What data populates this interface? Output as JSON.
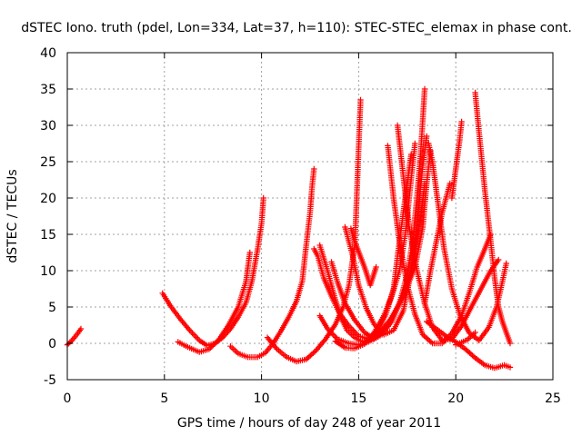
{
  "chart_data": {
    "type": "scatter",
    "title": "dSTEC Iono. truth (pdel, Lon=334, Lat=37, h=110): STEC-STEC_elemax in phase cont.",
    "xlabel": "GPS time / hours of day 248 of year 2011",
    "ylabel": "dSTEC  / TECUs",
    "xlim": [
      0,
      25
    ],
    "ylim": [
      -5,
      40
    ],
    "xticks": [
      "0",
      "5",
      "10",
      "15",
      "20",
      "25"
    ],
    "yticks": [
      "-5",
      "0",
      "5",
      "10",
      "15",
      "20",
      "25",
      "30",
      "35",
      "40"
    ],
    "grid": true,
    "marker": "plus",
    "series_color": "#ff0000",
    "series": [
      {
        "points": [
          [
            0.0,
            -0.2
          ],
          [
            0.2,
            0.3
          ],
          [
            0.4,
            0.9
          ],
          [
            0.6,
            1.6
          ],
          [
            0.7,
            2.0
          ]
        ]
      },
      {
        "points": [
          [
            4.9,
            6.9
          ],
          [
            5.3,
            5.2
          ],
          [
            5.8,
            3.4
          ],
          [
            6.3,
            1.8
          ],
          [
            6.8,
            0.4
          ],
          [
            7.2,
            -0.3
          ],
          [
            7.6,
            0.0
          ],
          [
            8.0,
            0.8
          ],
          [
            8.4,
            2.0
          ],
          [
            8.8,
            3.6
          ],
          [
            9.2,
            5.6
          ],
          [
            9.5,
            8.5
          ],
          [
            9.8,
            13.0
          ],
          [
            10.0,
            16.5
          ],
          [
            10.1,
            20.0
          ]
        ]
      },
      {
        "points": [
          [
            5.7,
            0.2
          ],
          [
            6.2,
            -0.5
          ],
          [
            6.8,
            -1.2
          ],
          [
            7.3,
            -0.8
          ],
          [
            7.8,
            0.5
          ],
          [
            8.3,
            2.5
          ],
          [
            8.8,
            5.0
          ],
          [
            9.2,
            8.5
          ],
          [
            9.4,
            12.5
          ]
        ]
      },
      {
        "points": [
          [
            8.4,
            -0.4
          ],
          [
            8.8,
            -1.4
          ],
          [
            9.3,
            -1.9
          ],
          [
            9.8,
            -1.9
          ],
          [
            10.2,
            -1.3
          ],
          [
            10.6,
            0.0
          ],
          [
            11.0,
            1.7
          ],
          [
            11.4,
            3.6
          ],
          [
            11.8,
            5.8
          ],
          [
            12.1,
            8.6
          ],
          [
            12.3,
            13.5
          ],
          [
            12.5,
            18.0
          ],
          [
            12.6,
            21.5
          ],
          [
            12.7,
            24.0
          ]
        ]
      },
      {
        "points": [
          [
            10.3,
            0.8
          ],
          [
            10.8,
            -0.8
          ],
          [
            11.3,
            -1.9
          ],
          [
            11.8,
            -2.5
          ],
          [
            12.3,
            -2.2
          ],
          [
            12.8,
            -1.0
          ],
          [
            13.3,
            0.6
          ],
          [
            13.8,
            2.6
          ],
          [
            14.2,
            5.0
          ],
          [
            14.5,
            8.0
          ],
          [
            14.8,
            13.5
          ],
          [
            14.9,
            20.0
          ],
          [
            15.0,
            27.0
          ],
          [
            15.1,
            33.5
          ]
        ]
      },
      {
        "points": [
          [
            12.7,
            13.0
          ],
          [
            12.9,
            12.0
          ],
          [
            13.2,
            9.0
          ],
          [
            13.6,
            6.5
          ],
          [
            14.0,
            4.2
          ],
          [
            14.5,
            2.4
          ],
          [
            15.0,
            1.0
          ],
          [
            15.5,
            0.6
          ],
          [
            16.0,
            1.8
          ],
          [
            16.4,
            4.0
          ],
          [
            16.8,
            7.5
          ],
          [
            17.0,
            12.0
          ],
          [
            17.3,
            18.0
          ],
          [
            17.5,
            22.0
          ],
          [
            17.7,
            26.0
          ]
        ]
      },
      {
        "points": [
          [
            13.0,
            13.5
          ],
          [
            13.4,
            10.0
          ],
          [
            13.8,
            6.0
          ],
          [
            14.1,
            3.5
          ],
          [
            14.4,
            1.8
          ],
          [
            14.8,
            0.8
          ],
          [
            15.2,
            0.2
          ],
          [
            15.6,
            0.5
          ],
          [
            16.1,
            1.5
          ],
          [
            16.7,
            3.5
          ],
          [
            17.3,
            6.5
          ],
          [
            17.9,
            10.5
          ],
          [
            18.3,
            16.0
          ],
          [
            18.5,
            22.0
          ],
          [
            18.7,
            26.5
          ]
        ]
      },
      {
        "points": [
          [
            13.6,
            11.2
          ],
          [
            13.9,
            8.5
          ],
          [
            14.3,
            5.5
          ],
          [
            14.8,
            3.2
          ],
          [
            15.3,
            1.5
          ],
          [
            15.8,
            0.6
          ],
          [
            16.2,
            1.2
          ],
          [
            16.7,
            3.0
          ],
          [
            17.1,
            5.5
          ],
          [
            17.5,
            9.5
          ],
          [
            17.8,
            14.5
          ],
          [
            18.0,
            20.0
          ],
          [
            18.2,
            26.5
          ],
          [
            18.4,
            35.0
          ]
        ]
      },
      {
        "points": [
          [
            14.3,
            16.0
          ],
          [
            14.7,
            12.0
          ],
          [
            15.0,
            8.0
          ],
          [
            15.4,
            4.8
          ],
          [
            15.8,
            2.6
          ],
          [
            16.3,
            1.2
          ],
          [
            16.8,
            1.8
          ],
          [
            17.3,
            4.5
          ],
          [
            17.6,
            8.5
          ],
          [
            17.9,
            13.5
          ],
          [
            18.1,
            19.0
          ],
          [
            18.3,
            24.5
          ],
          [
            18.5,
            28.5
          ]
        ]
      },
      {
        "points": [
          [
            14.6,
            15.8
          ],
          [
            14.8,
            14.0
          ],
          [
            15.3,
            10.5
          ],
          [
            15.6,
            8.0
          ],
          [
            15.9,
            10.5
          ]
        ]
      },
      {
        "points": [
          [
            13.0,
            3.8
          ],
          [
            13.4,
            2.0
          ],
          [
            13.9,
            0.6
          ],
          [
            14.5,
            0.0
          ],
          [
            15.0,
            -0.2
          ],
          [
            15.5,
            0.2
          ],
          [
            16.0,
            1.0
          ],
          [
            16.5,
            2.6
          ],
          [
            17.0,
            5.0
          ],
          [
            17.5,
            8.0
          ],
          [
            17.9,
            12.5
          ],
          [
            18.2,
            17.5
          ],
          [
            18.4,
            22.0
          ]
        ]
      },
      {
        "points": [
          [
            13.8,
            0.3
          ],
          [
            14.3,
            -0.6
          ],
          [
            14.8,
            -0.7
          ],
          [
            15.3,
            -0.1
          ],
          [
            15.8,
            1.5
          ],
          [
            16.3,
            3.8
          ],
          [
            16.7,
            6.5
          ],
          [
            17.1,
            10.0
          ],
          [
            17.4,
            15.0
          ],
          [
            17.6,
            20.0
          ],
          [
            17.8,
            25.0
          ],
          [
            17.9,
            27.5
          ]
        ]
      },
      {
        "points": [
          [
            16.5,
            27.2
          ],
          [
            16.8,
            20.0
          ],
          [
            17.1,
            14.0
          ],
          [
            17.5,
            8.0
          ],
          [
            17.9,
            4.0
          ],
          [
            18.3,
            1.2
          ],
          [
            18.8,
            0.0
          ],
          [
            19.3,
            0.0
          ],
          [
            19.8,
            1.4
          ],
          [
            20.3,
            3.8
          ],
          [
            20.7,
            7.0
          ],
          [
            21.1,
            10.5
          ],
          [
            21.5,
            13.0
          ],
          [
            21.8,
            15.0
          ]
        ]
      },
      {
        "points": [
          [
            17.0,
            30.0
          ],
          [
            17.3,
            23.0
          ],
          [
            17.6,
            16.0
          ],
          [
            18.0,
            10.0
          ],
          [
            18.4,
            5.5
          ],
          [
            18.8,
            2.2
          ],
          [
            19.3,
            0.4
          ],
          [
            19.8,
            0.6
          ],
          [
            20.3,
            2.4
          ],
          [
            20.8,
            5.0
          ],
          [
            21.3,
            7.5
          ],
          [
            21.8,
            10.0
          ],
          [
            22.2,
            11.5
          ]
        ]
      },
      {
        "points": [
          [
            18.6,
            27.5
          ],
          [
            18.8,
            25.0
          ],
          [
            19.1,
            19.0
          ],
          [
            19.4,
            13.0
          ],
          [
            19.8,
            7.5
          ],
          [
            20.2,
            4.0
          ],
          [
            20.7,
            1.4
          ],
          [
            21.2,
            0.4
          ],
          [
            21.7,
            2.2
          ],
          [
            22.1,
            5.0
          ],
          [
            22.4,
            8.5
          ],
          [
            22.6,
            11.0
          ]
        ]
      },
      {
        "points": [
          [
            19.8,
            20.0
          ],
          [
            20.0,
            24.0
          ],
          [
            20.2,
            28.0
          ],
          [
            20.3,
            30.5
          ]
        ]
      },
      {
        "points": [
          [
            18.4,
            5.5
          ],
          [
            18.7,
            10.0
          ],
          [
            19.0,
            14.0
          ],
          [
            19.3,
            18.0
          ],
          [
            19.7,
            22.0
          ]
        ]
      },
      {
        "points": [
          [
            21.0,
            34.5
          ],
          [
            21.2,
            29.0
          ],
          [
            21.5,
            21.0
          ],
          [
            21.8,
            14.0
          ],
          [
            22.0,
            9.0
          ],
          [
            22.2,
            5.0
          ],
          [
            22.4,
            3.0
          ],
          [
            22.6,
            1.5
          ],
          [
            22.8,
            0.0
          ]
        ]
      },
      {
        "points": [
          [
            18.5,
            3.0
          ],
          [
            19.0,
            2.0
          ],
          [
            19.5,
            1.0
          ],
          [
            20.0,
            0.2
          ],
          [
            20.5,
            -0.8
          ],
          [
            21.0,
            -2.0
          ],
          [
            21.5,
            -3.0
          ],
          [
            22.0,
            -3.4
          ],
          [
            22.5,
            -3.0
          ],
          [
            22.8,
            -3.3
          ]
        ]
      },
      {
        "points": [
          [
            21.0,
            1.5
          ],
          [
            20.6,
            0.5
          ],
          [
            20.0,
            -0.2
          ]
        ]
      }
    ]
  }
}
